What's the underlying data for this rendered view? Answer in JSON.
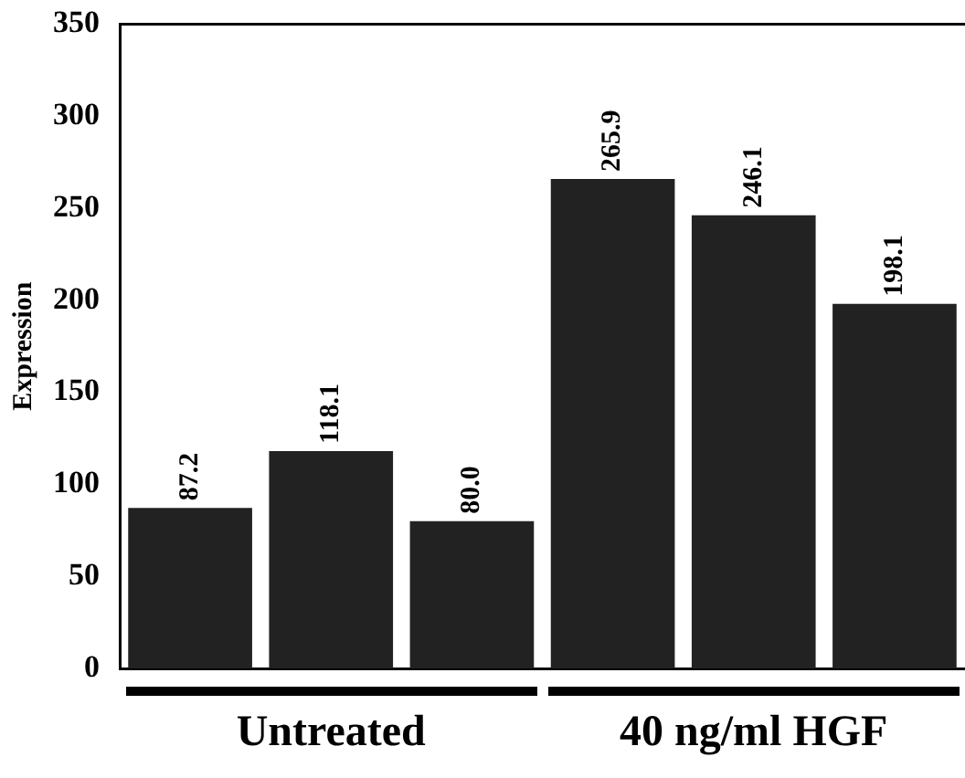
{
  "chart_data": {
    "type": "bar",
    "ylabel": "Expression",
    "categories": [
      null,
      null,
      null,
      null,
      null,
      null
    ],
    "values": [
      87.2,
      118.1,
      80.0,
      265.9,
      246.1,
      198.1
    ],
    "value_labels": [
      "87.2",
      "118.1",
      "80.0",
      "265.9",
      "246.1",
      "198.1"
    ],
    "color": "#222222",
    "ylim": [
      0,
      350
    ],
    "yticks": [
      0,
      50,
      100,
      150,
      200,
      250,
      300,
      350
    ],
    "grid": false,
    "legend": false,
    "annotations": [
      "Untreated",
      "40 ng/ml HGF"
    ]
  }
}
